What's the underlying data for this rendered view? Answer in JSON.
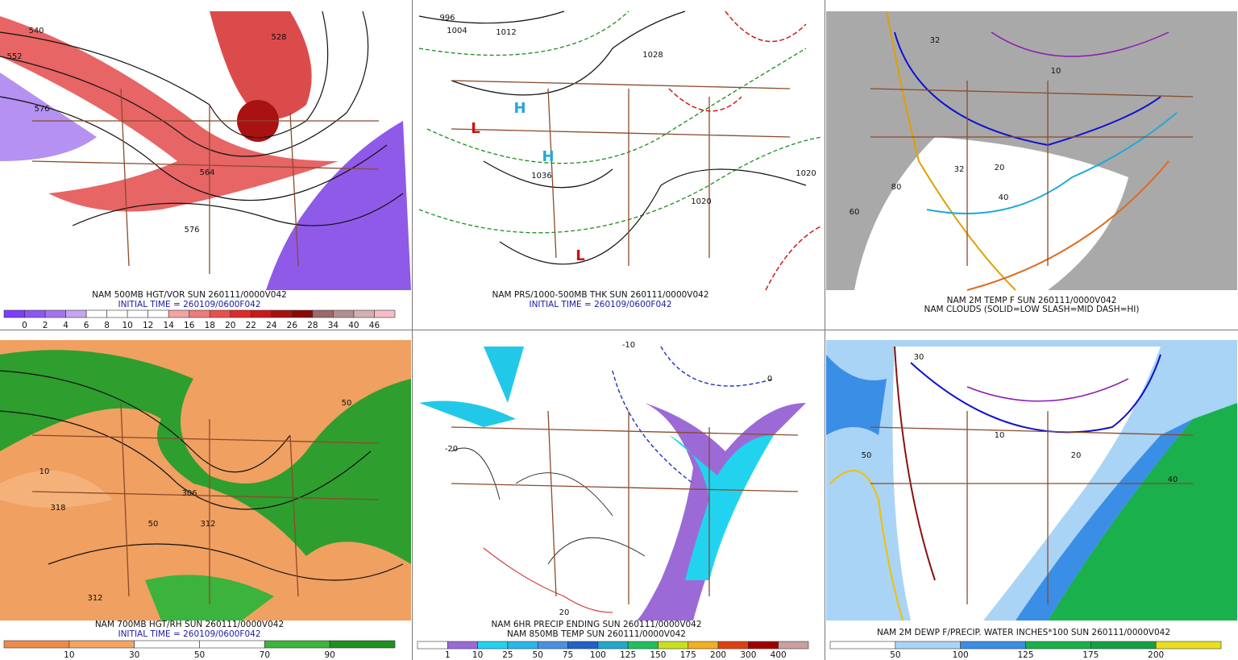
{
  "panels": [
    {
      "captions": [
        "NAM 500MB HGT/VOR SUN 260111/0000V042",
        "INITIAL TIME = 260109/0600F042"
      ],
      "map_labels": [
        "540",
        "552",
        "576",
        "528",
        "564",
        "576"
      ],
      "colorbar": {
        "labels": [
          "0",
          "2",
          "4",
          "6",
          "8",
          "10",
          "12",
          "14",
          "16",
          "18",
          "20",
          "22",
          "24",
          "26",
          "28",
          "34",
          "40",
          "46"
        ],
        "colors": [
          "#7b3dff",
          "#8f55f2",
          "#a673ee",
          "#c4a6f0",
          "#ffffff",
          "#ffffff",
          "#ffffff",
          "#ffffff",
          "#f4a3a3",
          "#ef7b7b",
          "#e85050",
          "#e02a2a",
          "#c81818",
          "#a81010",
          "#8b0808",
          "#9c6a6a",
          "#b48f8f",
          "#d6b0b0",
          "#f6bcc8"
        ]
      }
    },
    {
      "captions": [
        "NAM PRS/1000-500MB THK SUN 260111/0000V042",
        "INITIAL TIME = 260109/0600F042"
      ],
      "map_labels": [
        "996",
        "1004",
        "1012",
        "1020",
        "1028",
        "1036",
        "1020",
        "L",
        "L",
        "H",
        "H"
      ]
    },
    {
      "captions": [
        "NAM 2M TEMP F SUN 260111/0000V042",
        "NAM CLOUDS (SOLID=LOW SLASH=MID DASH=HI)"
      ],
      "map_labels": [
        "32",
        "32",
        "20",
        "10",
        "40",
        "60",
        "80"
      ]
    },
    {
      "captions": [
        "NAM 700MB HGT/RH SUN 260111/0000V042",
        "INITIAL TIME = 260109/0600F042"
      ],
      "map_labels": [
        "318",
        "312",
        "306",
        "312",
        "10",
        "50",
        "50"
      ],
      "colorbar": {
        "labels": [
          "10",
          "30",
          "50",
          "70",
          "90"
        ],
        "colors": [
          "#f08a4b",
          "#f4a460",
          "#ffffff",
          "#ffffff",
          "#3cb33c",
          "#1f8f1f"
        ]
      }
    },
    {
      "captions": [
        "NAM 6HR PRECIP ENDING SUN 260111/0000V042",
        "NAM 850MB TEMP SUN 260111/0000V042"
      ],
      "map_labels": [
        "-10",
        "-20",
        "20",
        "0"
      ],
      "colorbar": {
        "labels": [
          "1",
          "10",
          "25",
          "50",
          "75",
          "100",
          "125",
          "150",
          "175",
          "200",
          "300",
          "400"
        ],
        "colors": [
          "#ffffff",
          "#9c6ad6",
          "#22d3f0",
          "#28b8e8",
          "#4a90e0",
          "#2060c8",
          "#22a8c8",
          "#20c060",
          "#c8e020",
          "#f0b020",
          "#e04010",
          "#a00000",
          "#c8a0a0"
        ]
      }
    },
    {
      "captions": [
        "NAM 2M DEWP F/PRECIP. WATER INCHES*100 SUN 260111/0000V042"
      ],
      "map_labels": [
        "30",
        "20",
        "10",
        "40",
        "50"
      ],
      "colorbar": {
        "labels": [
          "50",
          "100",
          "125",
          "175",
          "200"
        ],
        "colors": [
          "#ffffff",
          "#a9d4f5",
          "#3a8ee6",
          "#1ab04c",
          "#14a040",
          "#e8e020"
        ]
      }
    }
  ]
}
